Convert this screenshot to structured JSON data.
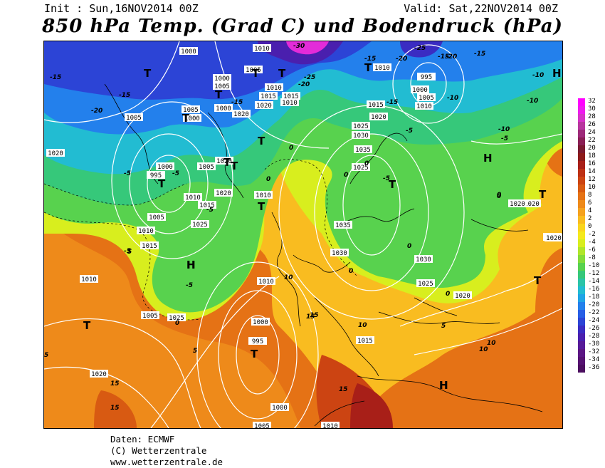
{
  "header": {
    "init": "Init : Sun,16NOV2014 00Z",
    "valid": "Valid: Sat,22NOV2014 00Z",
    "title": "850 hPa Temp. (Grad C) und Bodendruck (hPa)"
  },
  "credits": {
    "data": "Daten: ECMWF",
    "copyright": "(C) Wetterzentrale",
    "url": "www.wetterzentrale.de"
  },
  "legend": {
    "ticks": [
      "32",
      "30",
      "28",
      "26",
      "24",
      "22",
      "20",
      "18",
      "16",
      "14",
      "12",
      "10",
      "8",
      "6",
      "4",
      "2",
      "0",
      "-2",
      "-4",
      "-6",
      "-8",
      "-10",
      "-12",
      "-14",
      "-16",
      "-18",
      "-20",
      "-22",
      "-24",
      "-26",
      "-28",
      "-30",
      "-32",
      "-34",
      "-36"
    ],
    "colors": [
      "#ff00ff",
      "#ee1aee",
      "#d633c8",
      "#b8369f",
      "#9e2a7a",
      "#8a1f55",
      "#7a1a30",
      "#8c1a1a",
      "#a81f18",
      "#bd3014",
      "#cc4412",
      "#d85a12",
      "#e57215",
      "#ee8a1a",
      "#f5a21e",
      "#f9bc20",
      "#fad51e",
      "#f5e91c",
      "#d8ee1e",
      "#b0e62a",
      "#84dc3a",
      "#58d24e",
      "#36c87a",
      "#2bc4a8",
      "#22bcd2",
      "#1fa4e6",
      "#2380ec",
      "#275ee6",
      "#2c44d6",
      "#3a2cc2",
      "#4a1fae",
      "#561a98",
      "#5c1684",
      "#561272",
      "#4c0e60"
    ]
  },
  "map": {
    "pressure_labels": [
      "1000",
      "1010",
      "1005",
      "1000",
      "1005",
      "1010",
      "1015",
      "1020",
      "1010",
      "1005",
      "1000",
      "995",
      "1005",
      "1010",
      "1015",
      "1010",
      "1005",
      "1000",
      "995",
      "1000",
      "1005",
      "1010",
      "1020",
      "1025",
      "1030",
      "1035",
      "1035",
      "1030",
      "1025",
      "1020",
      "1020",
      "1015",
      "1010",
      "1005",
      "1000",
      "995",
      "1010",
      "1015",
      "1020",
      "1020",
      "1020",
      "1025",
      "1025",
      "1030",
      "1005",
      "1000",
      "1010",
      "1015",
      "1020",
      "1020",
      "1025",
      "1015",
      "1010",
      "1020",
      "1010",
      "1020",
      "1020",
      "1000",
      "1005"
    ],
    "temp_labels": [
      "-30",
      "-15",
      "-20",
      "-25",
      "-15",
      "-20",
      "-15",
      "-20",
      "-25",
      "-15",
      "-15",
      "-10",
      "-10",
      "-10",
      "-15",
      "-15",
      "-10",
      "-20",
      "-5",
      "-5",
      "-5",
      "-5",
      "-5",
      "-5",
      "0",
      "0",
      "0",
      "0",
      "0",
      "0",
      "0",
      "0",
      "0",
      "-5",
      "5",
      "5",
      "5",
      "10",
      "10",
      "10",
      "15",
      "15",
      "15",
      "15",
      "15",
      "10",
      "5",
      "0",
      "-5"
    ],
    "systems": [
      "T",
      "T",
      "T",
      "T",
      "T",
      "T",
      "T",
      "T",
      "T",
      "T",
      "T",
      "T",
      "T",
      "T",
      "H",
      "H",
      "H",
      "H",
      "H",
      "H",
      "T",
      "T"
    ]
  }
}
